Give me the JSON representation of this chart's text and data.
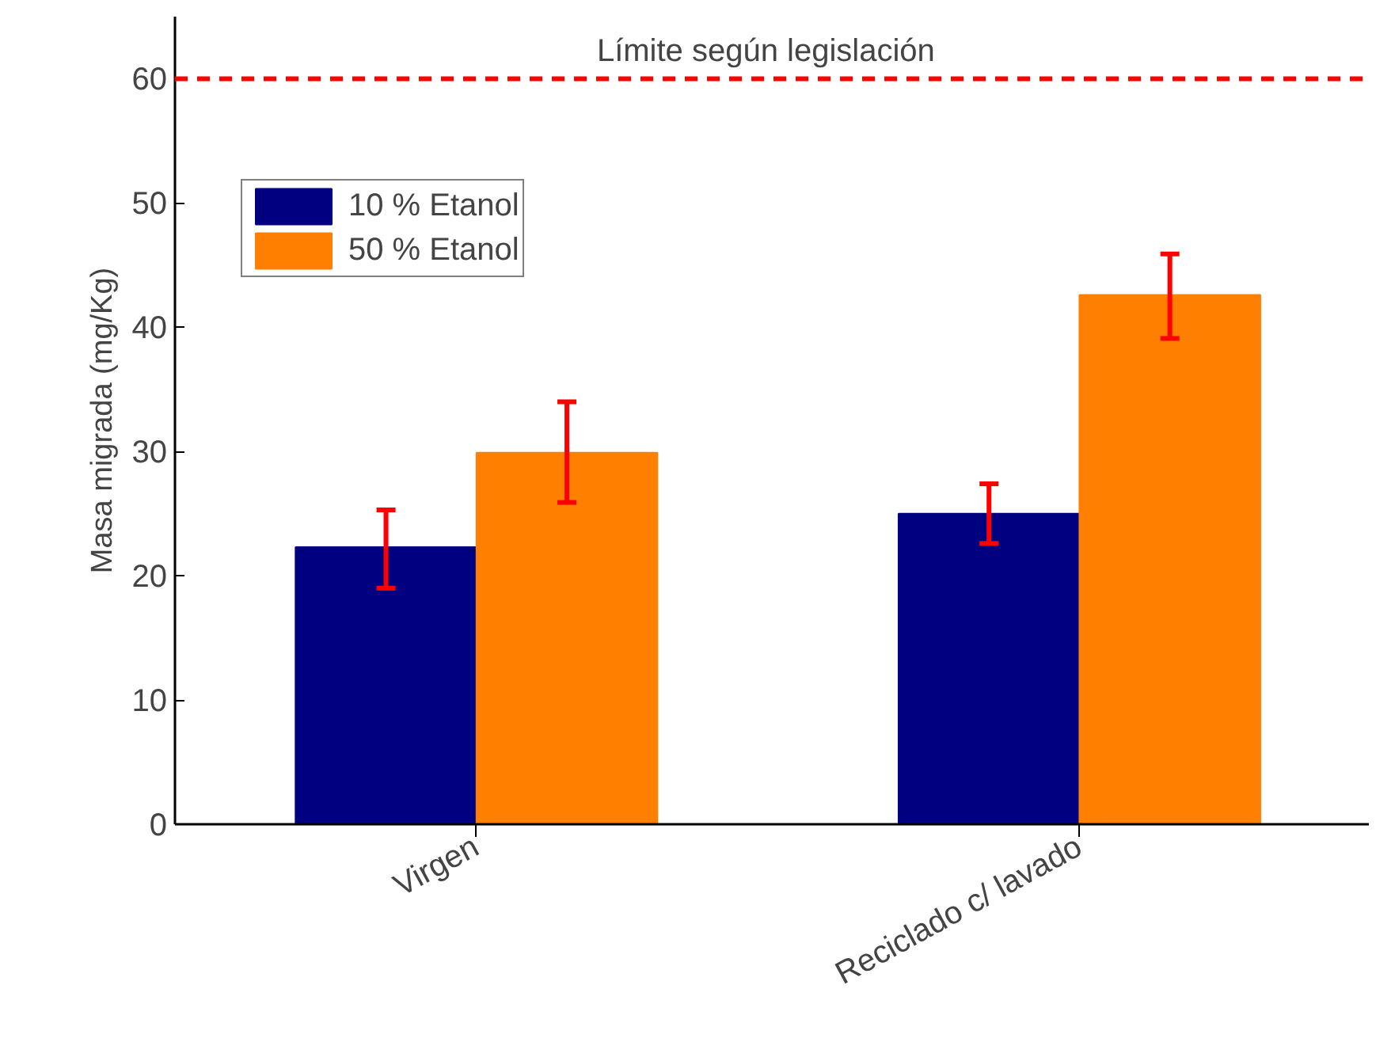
{
  "chart_data": {
    "type": "bar",
    "ylabel": "Masa migrada (mg/Kg)",
    "categories": [
      "Virgen",
      "Reciclado c/ lavado"
    ],
    "series": [
      {
        "name": "10 % Etanol",
        "color": "#000080",
        "values": [
          22.3,
          25.0
        ],
        "errors": [
          [
            19.0,
            25.3
          ],
          [
            22.6,
            27.4
          ]
        ]
      },
      {
        "name": "50 % Etanol",
        "color": "#ff8000",
        "values": [
          29.9,
          42.6
        ],
        "errors": [
          [
            25.9,
            34.0
          ],
          [
            39.1,
            45.9
          ]
        ]
      }
    ],
    "ylim": [
      0,
      65
    ],
    "yticks": [
      0,
      10,
      20,
      30,
      40,
      50,
      60
    ],
    "grid": false,
    "legend": "top left",
    "ref_lines": [
      {
        "axis": "y",
        "value": 60,
        "label": "Límite según legislación",
        "color": "#ff0000",
        "line_style": "dashed"
      }
    ]
  }
}
